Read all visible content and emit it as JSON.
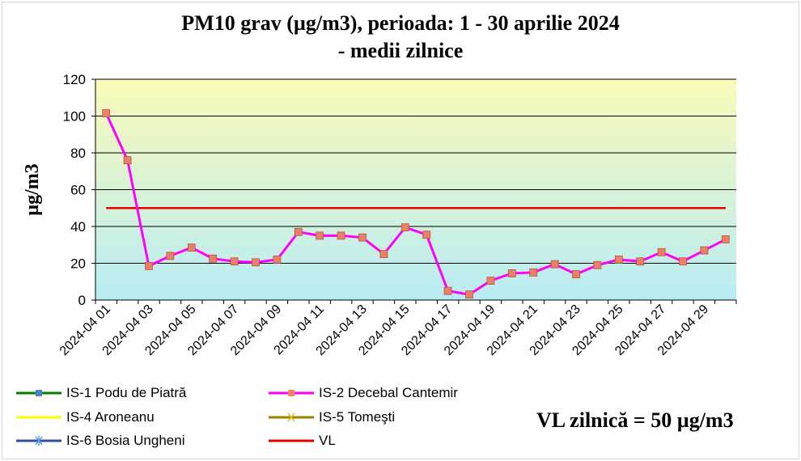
{
  "colors": {
    "plot_top": "#fafab8",
    "plot_bottom": "#b8ecf5",
    "grid": "#000000",
    "series_line": "#ff00ff",
    "series_marker": "#e8806a",
    "vl_line": "#e00000"
  },
  "chart_data": {
    "type": "line",
    "title_lines": [
      "PM10 grav (µg/m3), perioada: 1 - 30 aprilie 2024",
      "- medii zilnice"
    ],
    "ylabel": "µg/m3",
    "ylim": [
      0,
      120
    ],
    "yticks": [
      0,
      20,
      40,
      60,
      80,
      100,
      120
    ],
    "grid": "horizontal",
    "x": [
      "2024-04 01",
      "2024-04 02",
      "2024-04 03",
      "2024-04 04",
      "2024-04 05",
      "2024-04 06",
      "2024-04 07",
      "2024-04 08",
      "2024-04 09",
      "2024-04 10",
      "2024-04 11",
      "2024-04 12",
      "2024-04 13",
      "2024-04 14",
      "2024-04 15",
      "2024-04 16",
      "2024-04 17",
      "2024-04 18",
      "2024-04 19",
      "2024-04 20",
      "2024-04 21",
      "2024-04 22",
      "2024-04 23",
      "2024-04 24",
      "2024-04 25",
      "2024-04 26",
      "2024-04 27",
      "2024-04 28",
      "2024-04 29",
      "2024-04 30"
    ],
    "xtick_labels": [
      "2024-04 01",
      "2024-04 03",
      "2024-04 05",
      "2024-04 07",
      "2024-04 09",
      "2024-04 11",
      "2024-04 13",
      "2024-04 15",
      "2024-04 17",
      "2024-04 19",
      "2024-04 21",
      "2024-04 23",
      "2024-04 25",
      "2024-04 27",
      "2024-04 29"
    ],
    "series": [
      {
        "name": "IS-2 Decebal Cantemir",
        "values": [
          101.5,
          76,
          18.5,
          24,
          28.5,
          22.5,
          21,
          20.5,
          22,
          37,
          35,
          35,
          34,
          25,
          39.5,
          35.5,
          5,
          3,
          10.5,
          14.5,
          15,
          19.5,
          14,
          19,
          22,
          21,
          26,
          21,
          27,
          33
        ]
      },
      {
        "name": "VL",
        "values": [
          50,
          50,
          50,
          50,
          50,
          50,
          50,
          50,
          50,
          50,
          50,
          50,
          50,
          50,
          50,
          50,
          50,
          50,
          50,
          50,
          50,
          50,
          50,
          50,
          50,
          50,
          50,
          50,
          50,
          50
        ]
      }
    ],
    "legend": [
      {
        "name": "IS-1 Podu de Piatră",
        "color": "#008000",
        "marker": "square",
        "marker_color": "#4f81bd"
      },
      {
        "name": "IS-2 Decebal Cantemir",
        "color": "#ff00ff",
        "marker": "square",
        "marker_color": "#e8806a"
      },
      {
        "name": "IS-4 Aroneanu",
        "color": "#ffff00",
        "marker": "none",
        "marker_color": "#ffff00"
      },
      {
        "name": "IS-5 Tomeşti",
        "color": "#a08000",
        "marker": "x",
        "marker_color": "#d0c020"
      },
      {
        "name": "IS-6 Bosia Ungheni",
        "color": "#3050a0",
        "marker": "star",
        "marker_color": "#60a0e0"
      },
      {
        "name": "VL",
        "color": "#e00000",
        "marker": "none",
        "marker_color": "#e00000"
      }
    ],
    "legend_placement": "bottom-left",
    "annotation": "VL zilnică = 50 µg/m3"
  }
}
